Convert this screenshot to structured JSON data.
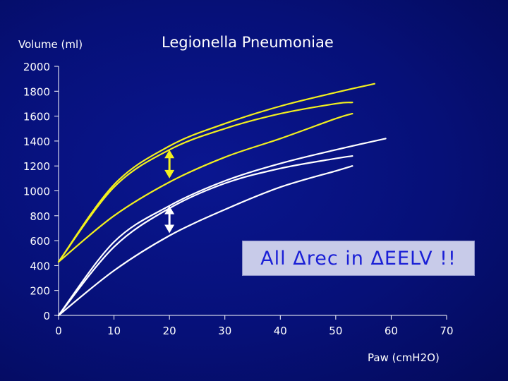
{
  "chart_data": {
    "type": "line",
    "title": "Legionella Pneumoniae",
    "ylabel": "Volume (ml)",
    "xlabel": "Paw (cmH2O)",
    "xlim": [
      0,
      70
    ],
    "ylim": [
      0,
      2000
    ],
    "xticks": [
      "0",
      "10",
      "20",
      "30",
      "40",
      "50",
      "60",
      "70"
    ],
    "yticks": [
      "0",
      "200",
      "400",
      "600",
      "800",
      "1000",
      "1200",
      "1400",
      "1600",
      "1800",
      "2000"
    ],
    "grid": false,
    "annotation": "All Δrec in ΔEELV !!",
    "colors": {
      "yellow": "#f2f01e",
      "white": "#ffffff",
      "axis": "#ffffff"
    },
    "series": [
      {
        "color": "yellow",
        "x": [
          0,
          10,
          20,
          30,
          40,
          50,
          57
        ],
        "y": [
          430,
          1050,
          1360,
          1540,
          1680,
          1790,
          1860
        ]
      },
      {
        "color": "yellow",
        "x": [
          0,
          10,
          20,
          30,
          40,
          50,
          53
        ],
        "y": [
          430,
          1030,
          1330,
          1500,
          1620,
          1700,
          1710
        ]
      },
      {
        "color": "yellow",
        "x": [
          0,
          10,
          20,
          30,
          40,
          50,
          53
        ],
        "y": [
          430,
          800,
          1070,
          1270,
          1420,
          1580,
          1620
        ]
      },
      {
        "color": "white",
        "x": [
          0,
          10,
          20,
          30,
          40,
          50,
          59
        ],
        "y": [
          0,
          590,
          880,
          1080,
          1220,
          1330,
          1420
        ]
      },
      {
        "color": "white",
        "x": [
          0,
          10,
          20,
          30,
          40,
          50,
          53
        ],
        "y": [
          0,
          550,
          860,
          1060,
          1180,
          1260,
          1280
        ]
      },
      {
        "color": "white",
        "x": [
          0,
          10,
          20,
          30,
          40,
          50,
          53
        ],
        "y": [
          0,
          360,
          640,
          850,
          1030,
          1160,
          1200
        ]
      }
    ],
    "arrows": [
      {
        "color": "yellow",
        "x": 20,
        "y_from": 1100,
        "y_to": 1330
      },
      {
        "color": "white",
        "x": 20,
        "y_from": 660,
        "y_to": 880
      }
    ]
  }
}
